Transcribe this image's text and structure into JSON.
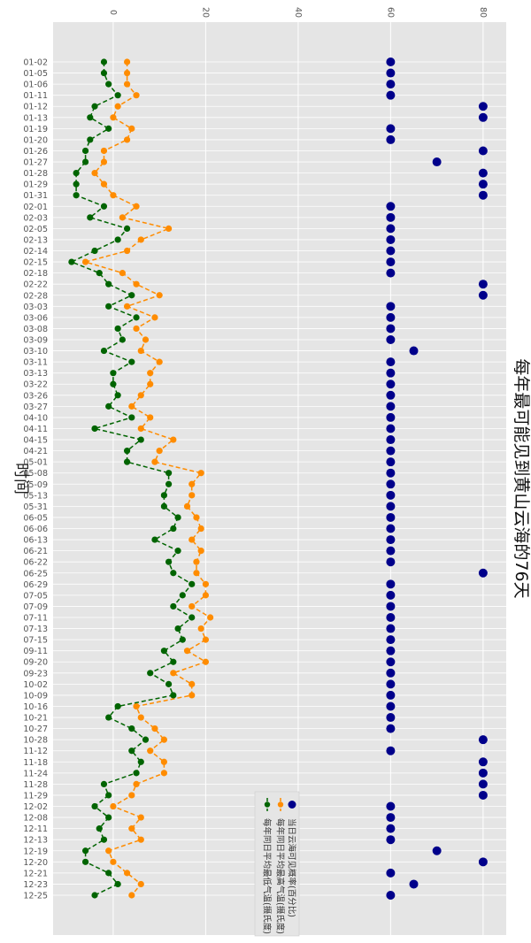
{
  "chart_data": {
    "type": "line",
    "title": "每年最可能见到黄山云海的76天",
    "xlabel": "时间",
    "value_axis": {
      "range": [
        -13,
        85
      ],
      "ticks": [
        0,
        20,
        40,
        60,
        80
      ]
    },
    "categories": [
      "01-02",
      "01-05",
      "01-06",
      "01-11",
      "01-12",
      "01-13",
      "01-19",
      "01-20",
      "01-26",
      "01-27",
      "01-28",
      "01-29",
      "01-31",
      "02-01",
      "02-03",
      "02-05",
      "02-13",
      "02-14",
      "02-15",
      "02-18",
      "02-22",
      "02-28",
      "03-03",
      "03-06",
      "03-08",
      "03-09",
      "03-10",
      "03-11",
      "03-13",
      "03-22",
      "03-26",
      "03-27",
      "04-10",
      "04-11",
      "04-15",
      "04-21",
      "05-01",
      "05-08",
      "05-09",
      "05-13",
      "05-31",
      "06-05",
      "06-06",
      "06-13",
      "06-21",
      "06-22",
      "06-25",
      "06-29",
      "07-05",
      "07-09",
      "07-11",
      "07-13",
      "07-15",
      "09-11",
      "09-20",
      "09-23",
      "10-02",
      "10-09",
      "10-16",
      "10-21",
      "10-27",
      "10-28",
      "11-12",
      "11-18",
      "11-24",
      "11-28",
      "11-29",
      "12-02",
      "12-08",
      "12-11",
      "12-13",
      "12-19",
      "12-20",
      "12-21",
      "12-23",
      "12-25"
    ],
    "series": [
      {
        "name": "当日云海可见概率(百分比)",
        "style": "scatter",
        "color": "#00008b",
        "values": [
          60,
          60,
          60,
          60,
          80,
          80,
          60,
          60,
          80,
          70,
          80,
          80,
          80,
          60,
          60,
          60,
          60,
          60,
          60,
          60,
          80,
          80,
          60,
          60,
          60,
          60,
          65,
          60,
          60,
          60,
          60,
          60,
          60,
          60,
          60,
          60,
          60,
          60,
          60,
          60,
          60,
          60,
          60,
          60,
          60,
          60,
          80,
          60,
          60,
          60,
          60,
          60,
          60,
          60,
          60,
          60,
          60,
          60,
          60,
          60,
          60,
          80,
          60,
          80,
          80,
          80,
          80,
          60,
          60,
          60,
          60,
          70,
          80,
          60,
          65,
          60
        ]
      },
      {
        "name": "每年同日平均最高气温(摄氏度)",
        "style": "dashed-line",
        "color": "#ff8c00",
        "values": [
          3,
          3,
          3,
          5,
          1,
          0,
          4,
          3,
          -2,
          -2,
          -4,
          -2,
          0,
          5,
          2,
          12,
          6,
          3,
          -6,
          2,
          5,
          10,
          3,
          9,
          5,
          7,
          6,
          10,
          8,
          8,
          6,
          4,
          8,
          6,
          13,
          10,
          9,
          19,
          17,
          17,
          16,
          18,
          19,
          17,
          19,
          18,
          18,
          20,
          20,
          17,
          21,
          19,
          20,
          16,
          20,
          13,
          17,
          17,
          5,
          6,
          9,
          11,
          8,
          11,
          11,
          5,
          4,
          0,
          6,
          4,
          6,
          -1,
          0,
          3,
          6,
          4
        ]
      },
      {
        "name": "每年同日平均最低气温(摄氏度)",
        "style": "dashed-line",
        "color": "#006400",
        "values": [
          -2,
          -2,
          -1,
          1,
          -4,
          -5,
          -1,
          -5,
          -6,
          -6,
          -8,
          -8,
          -8,
          -2,
          -5,
          3,
          1,
          -4,
          -9,
          -3,
          -1,
          4,
          -1,
          5,
          1,
          2,
          -2,
          4,
          0,
          0,
          1,
          -1,
          4,
          -4,
          6,
          3,
          3,
          12,
          12,
          11,
          11,
          14,
          13,
          9,
          14,
          12,
          13,
          17,
          15,
          13,
          17,
          14,
          15,
          11,
          13,
          8,
          12,
          13,
          1,
          -1,
          4,
          7,
          4,
          6,
          5,
          -2,
          -1,
          -4,
          -1,
          -3,
          -2,
          -6,
          -6,
          -1,
          1,
          -4
        ]
      }
    ]
  }
}
